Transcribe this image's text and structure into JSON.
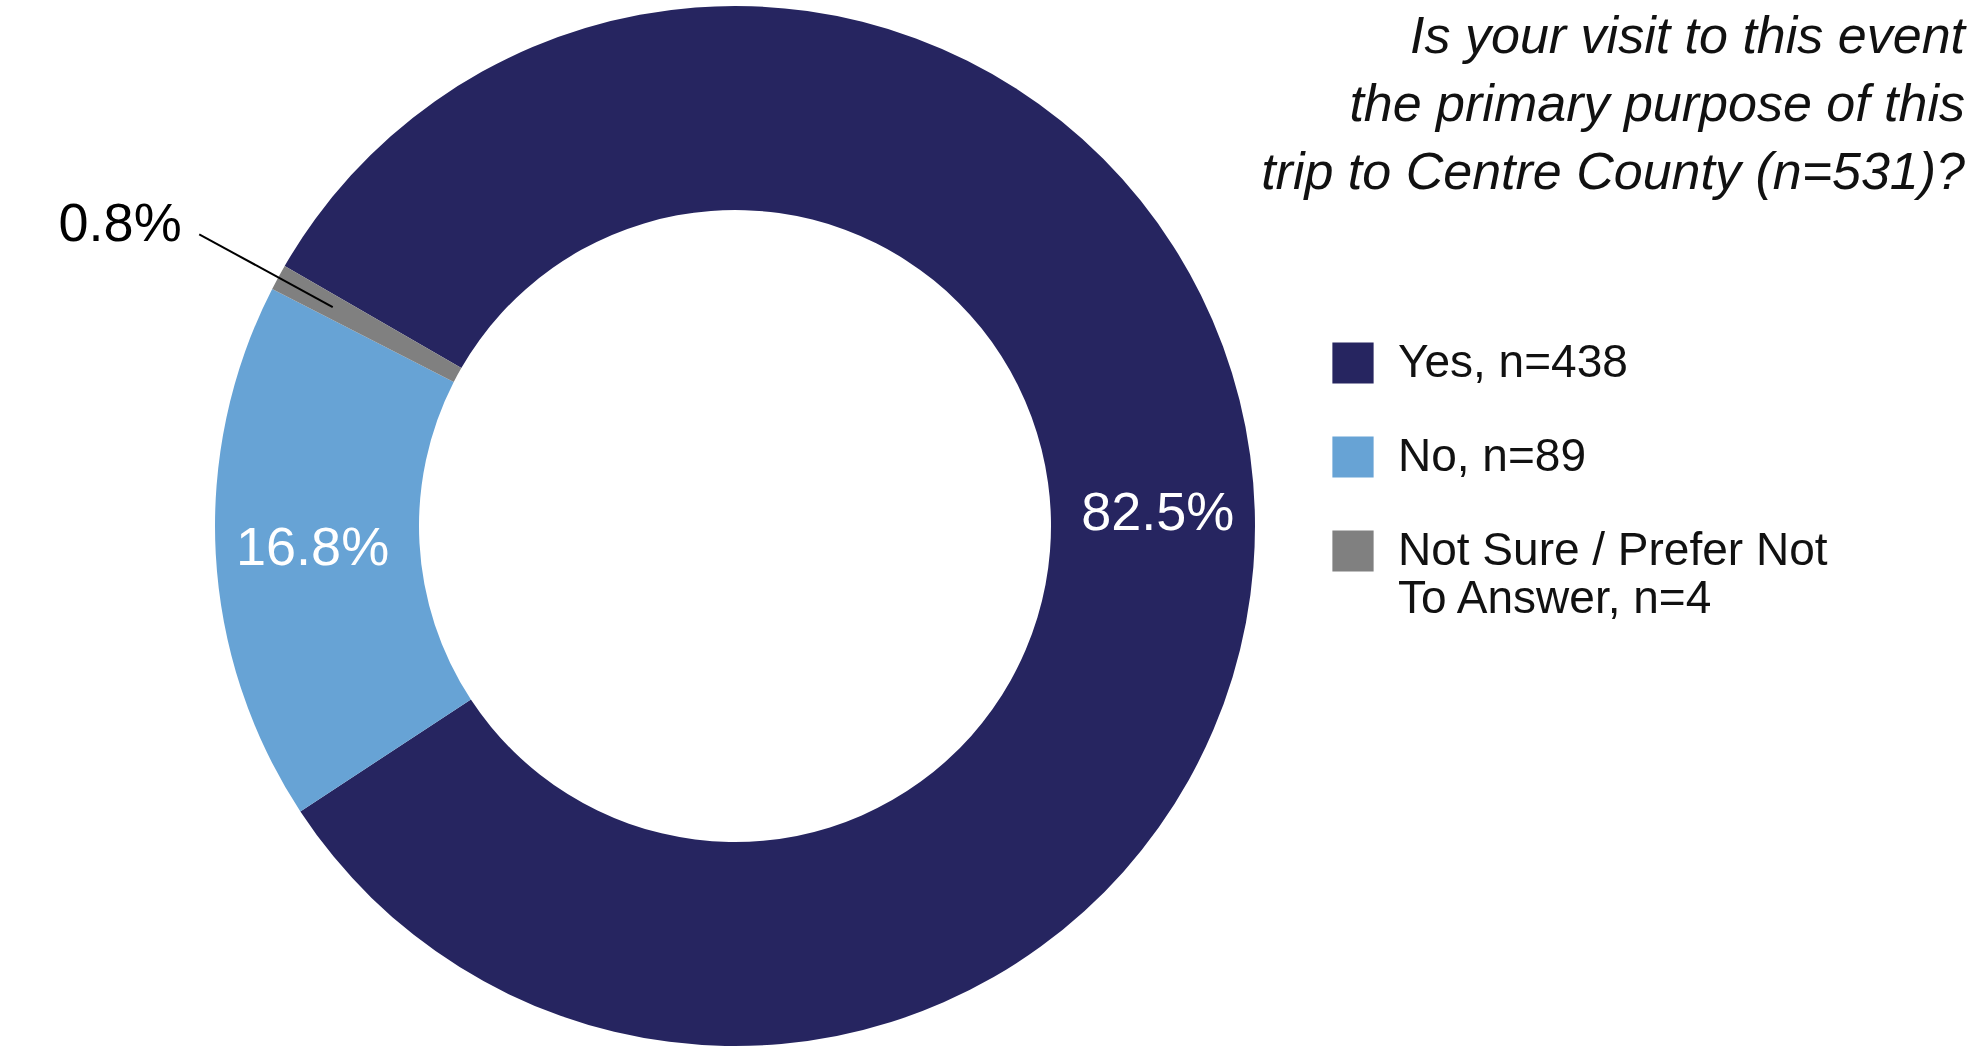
{
  "chart_data": {
    "type": "donut",
    "title": "Is your visit to this event the primary purpose of this trip to Centre County (n=531)?",
    "categories": [
      "Yes, n=438",
      "No, n=89",
      "Not Sure / Prefer Not To Answer, n=4"
    ],
    "values": [
      82.5,
      16.8,
      0.8
    ],
    "colors": [
      "#262560",
      "#67a3d5",
      "#808080"
    ],
    "value_labels": [
      "82.5%",
      "16.8%",
      "0.8%"
    ],
    "legend": "right"
  }
}
